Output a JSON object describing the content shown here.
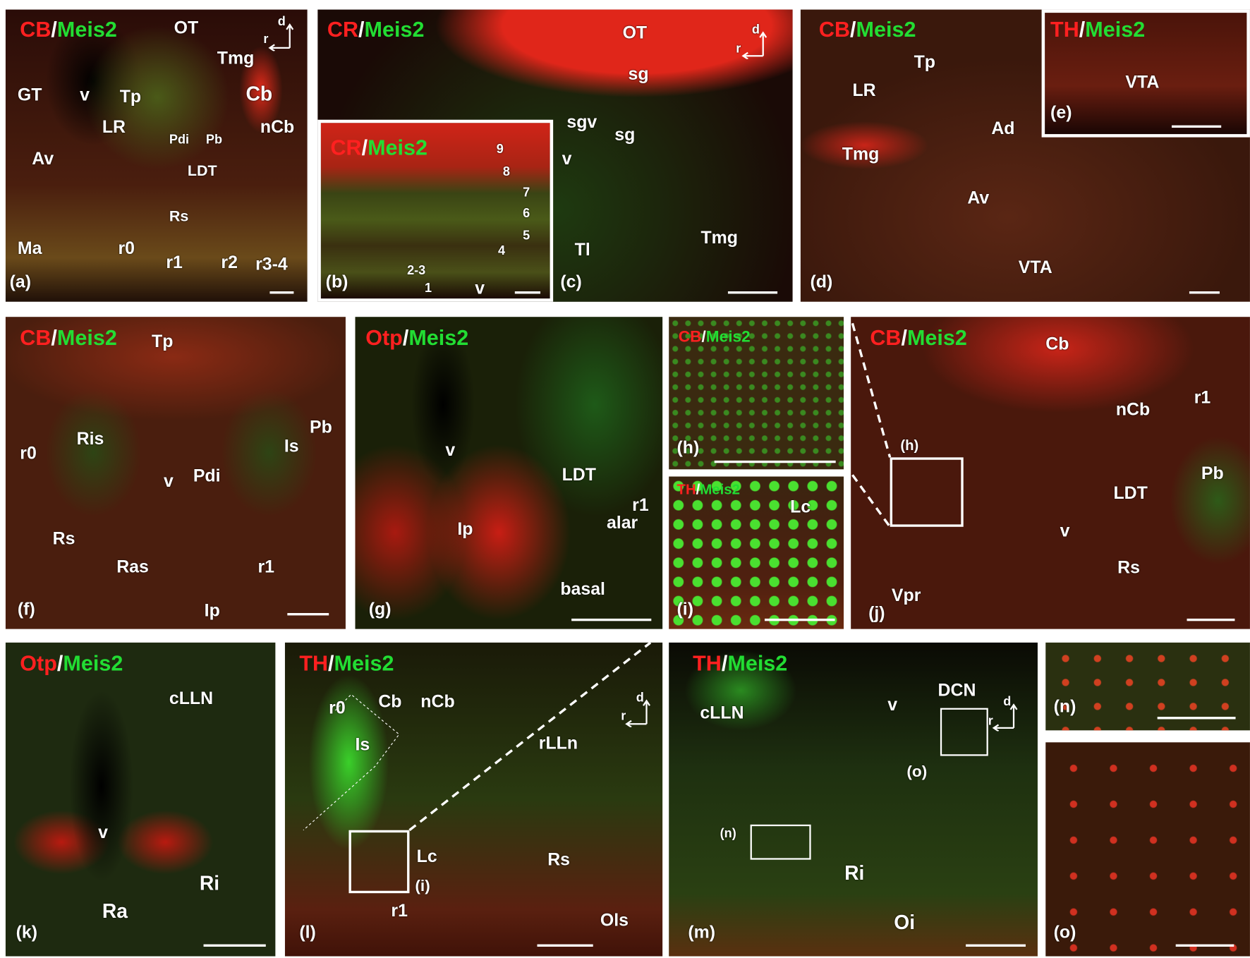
{
  "colors": {
    "red_marker": "#ff2020",
    "green_marker": "#22dd33",
    "label": "#ffffff"
  },
  "orientation": {
    "dorsal": "d",
    "rostral": "r"
  },
  "panels": {
    "a": {
      "letter": "(a)",
      "red": "CB",
      "green": "Meis2",
      "labels": [
        "OT",
        "Tmg",
        "GT",
        "v",
        "Tp",
        "Cb",
        "LR",
        "Pdi",
        "Pb",
        "nCb",
        "Av",
        "LDT",
        "Rs",
        "Ma",
        "r0",
        "r1",
        "r2",
        "r3-4"
      ]
    },
    "b": {
      "letter": "(b)",
      "red": "CR",
      "green": "Meis2",
      "labels": [
        "9",
        "8",
        "7",
        "6",
        "5",
        "4",
        "2-3",
        "1",
        "v"
      ]
    },
    "c": {
      "letter": "(c)",
      "red": "CR",
      "green": "Meis2",
      "labels": [
        "OT",
        "sg",
        "sgv",
        "sg",
        "v",
        "Tl",
        "Tmg"
      ]
    },
    "d": {
      "letter": "(d)",
      "red": "CB",
      "green": "Meis2",
      "labels": [
        "Tp",
        "LR",
        "Ad",
        "Tmg",
        "Av",
        "VTA"
      ]
    },
    "e": {
      "letter": "(e)",
      "red": "TH",
      "green": "Meis2",
      "labels": [
        "VTA"
      ]
    },
    "f": {
      "letter": "(f)",
      "red": "CB",
      "green": "Meis2",
      "labels": [
        "Tp",
        "Pb",
        "r0",
        "Ris",
        "Is",
        "v",
        "Pdi",
        "Rs",
        "Ras",
        "r1",
        "Ip"
      ]
    },
    "g": {
      "letter": "(g)",
      "red": "Otp",
      "green": "Meis2",
      "labels": [
        "v",
        "LDT",
        "r1",
        "Ip",
        "alar",
        "basal"
      ]
    },
    "h": {
      "letter": "(h)",
      "red": "CB",
      "green": "Meis2",
      "labels": []
    },
    "i": {
      "letter": "(i)",
      "red": "TH",
      "green": "Meis2",
      "labels": [
        "Lc"
      ]
    },
    "j": {
      "letter": "(j)",
      "red": "CB",
      "green": "Meis2",
      "labels": [
        "Cb",
        "nCb",
        "r1",
        "(h)",
        "v",
        "LDT",
        "Pb",
        "Rs",
        "Vpr"
      ]
    },
    "k": {
      "letter": "(k)",
      "red": "Otp",
      "green": "Meis2",
      "labels": [
        "cLLN",
        "v",
        "Ri",
        "Ra"
      ]
    },
    "l": {
      "letter": "(l)",
      "red": "TH",
      "green": "Meis2",
      "labels": [
        "r0",
        "Cb",
        "nCb",
        "Is",
        "rLLn",
        "Lc",
        "Rs",
        "(i)",
        "r1",
        "Ols"
      ]
    },
    "m": {
      "letter": "(m)",
      "red": "TH",
      "green": "Meis2",
      "labels": [
        "v",
        "DCN",
        "cLLN",
        "(o)",
        "(n)",
        "Ri",
        "Oi"
      ]
    },
    "n": {
      "letter": "(n)"
    },
    "o": {
      "letter": "(o)"
    }
  }
}
